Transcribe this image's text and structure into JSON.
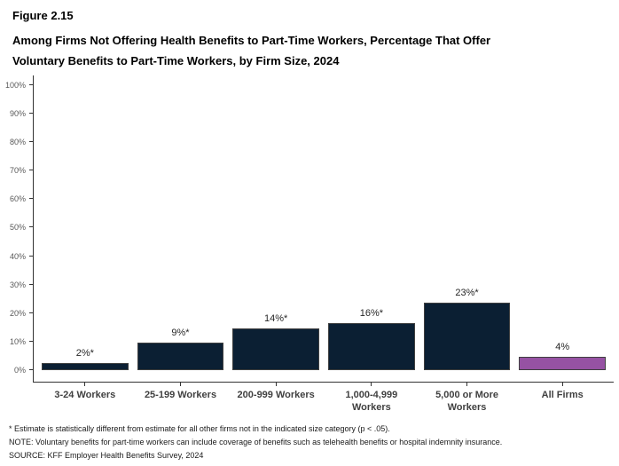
{
  "figure": {
    "label": "Figure 2.15",
    "title_line1": "Among Firms Not Offering Health Benefits to Part-Time Workers, Percentage That Offer",
    "title_line2": "Voluntary Benefits to Part-Time Workers, by Firm Size, 2024"
  },
  "chart_data": {
    "type": "bar",
    "title": "Among Firms Not Offering Health Benefits to Part-Time Workers, Percentage That Offer Voluntary Benefits to Part-Time Workers, by Firm Size, 2024",
    "categories": [
      "3-24 Workers",
      "25-199 Workers",
      "200-999 Workers",
      "1,000-4,999 Workers",
      "5,000 or More Workers",
      "All Firms"
    ],
    "category_label_lines": [
      [
        "3-24 Workers",
        ""
      ],
      [
        "25-199 Workers",
        ""
      ],
      [
        "200-999 Workers",
        ""
      ],
      [
        "1,000-4,999",
        "Workers"
      ],
      [
        "5,000 or More",
        "Workers"
      ],
      [
        "All Firms",
        ""
      ]
    ],
    "values": [
      2,
      9,
      14,
      16,
      23,
      4
    ],
    "value_labels": [
      "2%*",
      "9%*",
      "14%*",
      "16%*",
      "23%*",
      "4%"
    ],
    "bar_colors": [
      "#0b1f33",
      "#0b1f33",
      "#0b1f33",
      "#0b1f33",
      "#0b1f33",
      "#9652a3"
    ],
    "bar_border_color": "#404040",
    "xlabel": "",
    "ylabel": "",
    "ylim": [
      0,
      100
    ],
    "ytick_step": 10,
    "ytick_labels_top_to_bottom": [
      "100%",
      "90%",
      "80%",
      "70%",
      "60%",
      "50%",
      "40%",
      "30%",
      "20%",
      "10%",
      "0%"
    ],
    "grid": false,
    "legend": "none"
  },
  "footnotes": {
    "asterisk": "* Estimate is statistically different from estimate for all other firms not in the indicated size category (p < .05).",
    "note": "NOTE: Voluntary benefits for part-time workers can include coverage of benefits such as telehealth benefits or hospital indemnity insurance.",
    "source": "SOURCE: KFF Employer Health Benefits Survey, 2024"
  }
}
